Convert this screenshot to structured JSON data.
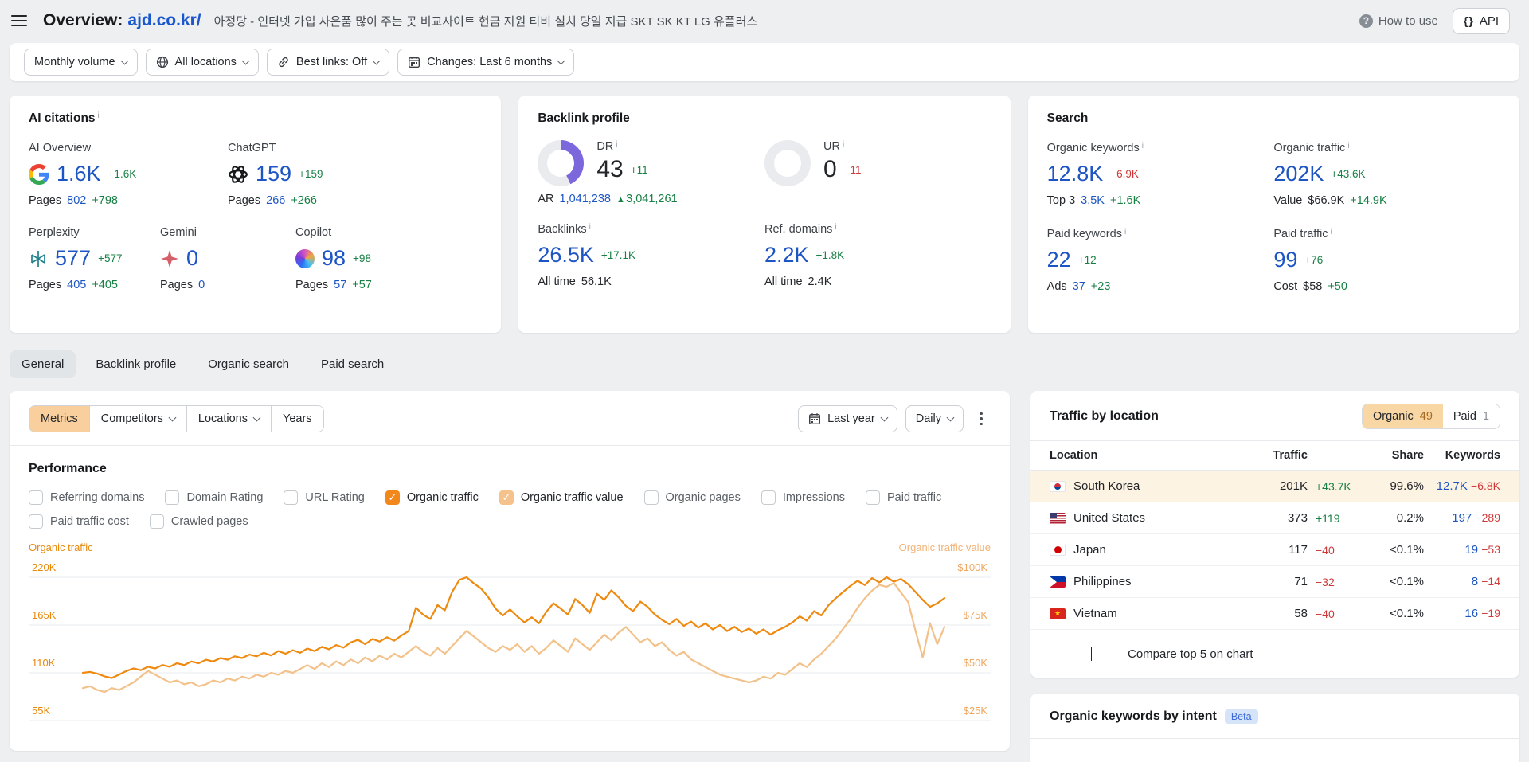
{
  "header": {
    "title": "Overview:",
    "domain": "ajd.co.kr/",
    "subtitle": "아정당 - 인터넷 가입 사은품 많이 주는 곳 비교사이트 현금 지원 티비 설치 당일 지급 SKT SK KT LG 유플러스",
    "how_to_use": "How to use",
    "api": "API",
    "api_icon": "{}"
  },
  "filters": [
    {
      "label": "Monthly volume",
      "icon": "none"
    },
    {
      "label": "All locations",
      "icon": "globe"
    },
    {
      "label": "Best links: Off",
      "icon": "link"
    },
    {
      "label": "Changes: Last 6 months",
      "icon": "calendar"
    }
  ],
  "ai_citations": {
    "title": "AI citations",
    "pages_label": "Pages",
    "metrics": [
      {
        "label": "AI Overview",
        "icon": "google-icon",
        "value": "1.6K",
        "delta": "+1.6K",
        "pages": "802",
        "pages_delta": "+798"
      },
      {
        "label": "ChatGPT",
        "icon": "openai-icon",
        "value": "159",
        "delta": "+159",
        "pages": "266",
        "pages_delta": "+266"
      },
      {
        "label": "Perplexity",
        "icon": "perplexity-icon",
        "value": "577",
        "delta": "+577",
        "pages": "405",
        "pages_delta": "+405"
      },
      {
        "label": "Gemini",
        "icon": "gemini-icon",
        "value": "0",
        "delta": "",
        "pages": "0",
        "pages_delta": ""
      },
      {
        "label": "Copilot",
        "icon": "copilot-icon",
        "value": "98",
        "delta": "+98",
        "pages": "57",
        "pages_delta": "+57"
      }
    ]
  },
  "backlink_profile": {
    "title": "Backlink profile",
    "dr": {
      "label": "DR",
      "value": "43",
      "delta": "+11",
      "donut_pct": 43,
      "donut_color": "#7c67dd",
      "sub_label": "AR",
      "sub_value": "1,041,238",
      "sub_delta_icon": "▲",
      "sub_delta": "3,041,261"
    },
    "ur": {
      "label": "UR",
      "value": "0",
      "delta": "−11"
    },
    "backlinks": {
      "label": "Backlinks",
      "value": "26.5K",
      "delta": "+17.1K",
      "sub_label": "All time",
      "sub_value": "56.1K"
    },
    "ref_domains": {
      "label": "Ref. domains",
      "value": "2.2K",
      "delta": "+1.8K",
      "sub_label": "All time",
      "sub_value": "2.4K"
    }
  },
  "search": {
    "title": "Search",
    "organic_keywords": {
      "label": "Organic keywords",
      "value": "12.8K",
      "delta": "−6.9K",
      "sub_label": "Top 3",
      "sub_value": "3.5K",
      "sub_delta": "+1.6K"
    },
    "organic_traffic": {
      "label": "Organic traffic",
      "value": "202K",
      "delta": "+43.6K",
      "sub_label": "Value",
      "sub_value": "$66.9K",
      "sub_delta": "+14.9K"
    },
    "paid_keywords": {
      "label": "Paid keywords",
      "value": "22",
      "delta": "+12",
      "sub_label": "Ads",
      "sub_value": "37",
      "sub_delta": "+23"
    },
    "paid_traffic": {
      "label": "Paid traffic",
      "value": "99",
      "delta": "+76",
      "sub_label": "Cost",
      "sub_value": "$58",
      "sub_delta": "+50"
    }
  },
  "tabs": [
    {
      "label": "General",
      "active": true
    },
    {
      "label": "Backlink profile",
      "active": false
    },
    {
      "label": "Organic search",
      "active": false
    },
    {
      "label": "Paid search",
      "active": false
    }
  ],
  "toolbar": {
    "segments": [
      {
        "label": "Metrics",
        "active": true,
        "chevron": false
      },
      {
        "label": "Competitors",
        "active": false,
        "chevron": true
      },
      {
        "label": "Locations",
        "active": false,
        "chevron": true
      },
      {
        "label": "Years",
        "active": false,
        "chevron": false
      }
    ],
    "period": "Last year",
    "granularity": "Daily"
  },
  "performance": {
    "title": "Performance",
    "checkboxes": [
      {
        "label": "Referring domains",
        "checked": false,
        "color": ""
      },
      {
        "label": "Domain Rating",
        "checked": false,
        "color": ""
      },
      {
        "label": "URL Rating",
        "checked": false,
        "color": ""
      },
      {
        "label": "Organic traffic",
        "checked": true,
        "color": "#f2871c"
      },
      {
        "label": "Organic traffic value",
        "checked": true,
        "color": "#f6c28b"
      },
      {
        "label": "Organic pages",
        "checked": false,
        "color": ""
      },
      {
        "label": "Impressions",
        "checked": false,
        "color": ""
      },
      {
        "label": "Paid traffic",
        "checked": false,
        "color": ""
      },
      {
        "label": "Paid traffic cost",
        "checked": false,
        "color": ""
      },
      {
        "label": "Crawled pages",
        "checked": false,
        "color": ""
      }
    ]
  },
  "chart_data": {
    "type": "line",
    "title": "Performance",
    "x_range": "Last year, daily",
    "grid": true,
    "left_axis": {
      "title": "Organic traffic",
      "labels": [
        "220K",
        "165K",
        "110K",
        "55K"
      ],
      "min": 55,
      "max": 220,
      "unit": "K visits"
    },
    "right_axis": {
      "title": "Organic traffic value",
      "labels": [
        "$100K",
        "$75K",
        "$50K",
        "$25K"
      ],
      "min": 25,
      "max": 100,
      "unit": "$K"
    },
    "series": [
      {
        "name": "Organic traffic",
        "axis": "left",
        "color": "#ee8a10",
        "values": [
          110,
          111,
          109,
          106,
          104,
          108,
          112,
          115,
          113,
          117,
          115,
          119,
          117,
          121,
          119,
          123,
          121,
          125,
          123,
          127,
          125,
          129,
          127,
          131,
          129,
          133,
          130,
          135,
          132,
          136,
          133,
          138,
          135,
          140,
          137,
          142,
          139,
          145,
          148,
          143,
          149,
          146,
          151,
          147,
          153,
          158,
          185,
          177,
          172,
          188,
          182,
          203,
          217,
          220,
          213,
          207,
          197,
          184,
          176,
          183,
          175,
          168,
          174,
          167,
          180,
          190,
          184,
          177,
          195,
          188,
          179,
          201,
          194,
          205,
          197,
          187,
          181,
          192,
          186,
          177,
          171,
          166,
          172,
          164,
          169,
          162,
          167,
          160,
          165,
          158,
          163,
          157,
          161,
          155,
          160,
          154,
          159,
          163,
          168,
          175,
          170,
          181,
          176,
          188,
          196,
          203,
          210,
          216,
          211,
          219,
          214,
          220,
          215,
          218,
          212,
          203,
          194,
          186,
          190,
          196
        ]
      },
      {
        "name": "Organic traffic value",
        "axis": "right",
        "color": "#f3c18a",
        "values": [
          42,
          43,
          41,
          40,
          42,
          41,
          43,
          45,
          48,
          51,
          49,
          47,
          45,
          46,
          44,
          45,
          43,
          44,
          46,
          45,
          47,
          46,
          48,
          47,
          49,
          48,
          50,
          49,
          51,
          50,
          52,
          54,
          52,
          55,
          53,
          56,
          54,
          57,
          55,
          58,
          56,
          59,
          57,
          60,
          58,
          61,
          64,
          61,
          59,
          63,
          60,
          64,
          68,
          72,
          69,
          66,
          63,
          61,
          64,
          62,
          65,
          61,
          64,
          60,
          63,
          67,
          64,
          61,
          68,
          65,
          62,
          66,
          70,
          67,
          71,
          74,
          70,
          66,
          68,
          64,
          66,
          62,
          59,
          61,
          57,
          55,
          53,
          51,
          49,
          48,
          47,
          46,
          45,
          46,
          48,
          47,
          50,
          49,
          52,
          55,
          53,
          57,
          60,
          64,
          68,
          73,
          78,
          84,
          89,
          93,
          96,
          95,
          97,
          92,
          87,
          72,
          58,
          76,
          65,
          74
        ]
      }
    ]
  },
  "traffic_by_location": {
    "title": "Traffic by location",
    "toggle": [
      {
        "label": "Organic",
        "count": "49",
        "active": true
      },
      {
        "label": "Paid",
        "count": "1",
        "active": false
      }
    ],
    "columns": [
      "Location",
      "Traffic",
      "Share",
      "Keywords"
    ],
    "rows": [
      {
        "flag": "kr",
        "location": "South Korea",
        "traffic": "201K",
        "traffic_delta": "+43.7K",
        "share": "99.6%",
        "keywords": "12.7K",
        "keywords_delta": "−6.8K",
        "highlight": true
      },
      {
        "flag": "us",
        "location": "United States",
        "traffic": "373",
        "traffic_delta": "+119",
        "share": "0.2%",
        "keywords": "197",
        "keywords_delta": "−289",
        "highlight": false
      },
      {
        "flag": "jp",
        "location": "Japan",
        "traffic": "117",
        "traffic_delta": "−40",
        "share": "<0.1%",
        "keywords": "19",
        "keywords_delta": "−53",
        "highlight": false
      },
      {
        "flag": "ph",
        "location": "Philippines",
        "traffic": "71",
        "traffic_delta": "−32",
        "share": "<0.1%",
        "keywords": "8",
        "keywords_delta": "−14",
        "highlight": false
      },
      {
        "flag": "vn",
        "location": "Vietnam",
        "traffic": "58",
        "traffic_delta": "−40",
        "share": "<0.1%",
        "keywords": "16",
        "keywords_delta": "−19",
        "highlight": false
      }
    ],
    "compare_link": "Compare top 5 on chart"
  },
  "keywords_by_intent": {
    "title": "Organic keywords by intent",
    "badge": "Beta"
  }
}
